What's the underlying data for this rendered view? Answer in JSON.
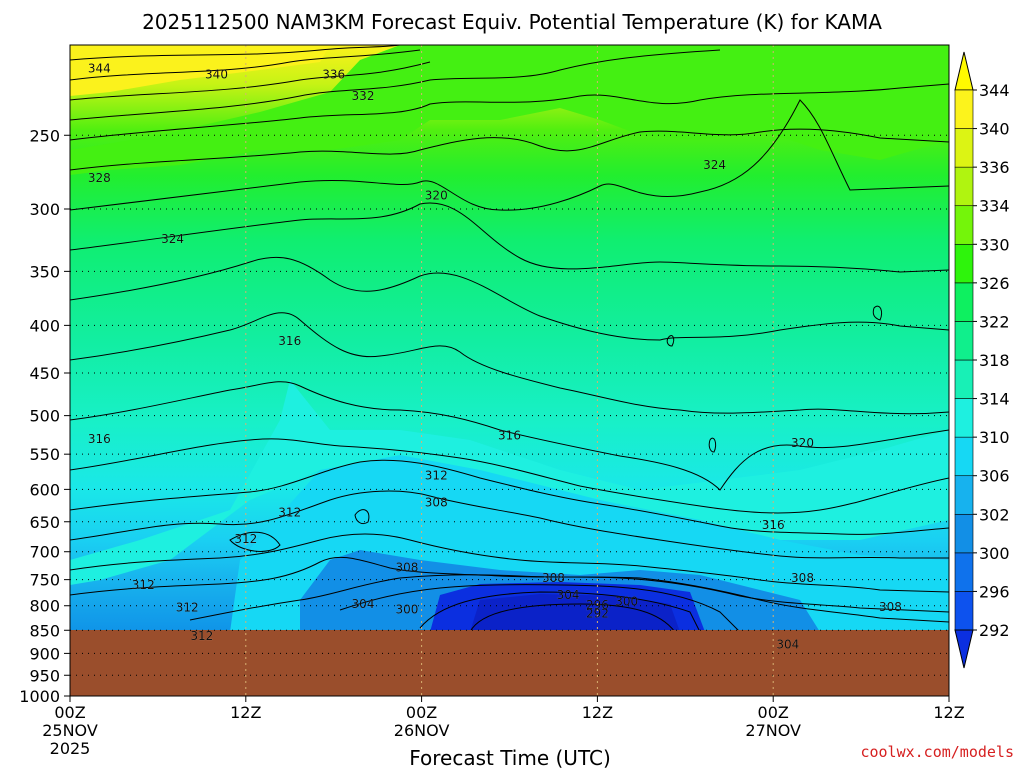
{
  "chart_data": {
    "type": "heatmap",
    "title": "2025112500 NAM3KM Forecast Equiv. Potential Temperature (K) for KAMA",
    "xlabel": "Forecast Time (UTC)",
    "ylabel": "",
    "credit": "coolwx.com/models",
    "y_axis": {
      "scale": "log",
      "ylim": [
        1000,
        200
      ],
      "inverted": true,
      "ticks": [
        "250",
        "300",
        "350",
        "400",
        "450",
        "500",
        "550",
        "600",
        "650",
        "700",
        "750",
        "800",
        "850",
        "900",
        "950",
        "1000"
      ]
    },
    "x_axis": {
      "xlim_hours": [
        0,
        60
      ],
      "ticks": [
        {
          "hour": 0,
          "l1": "00Z",
          "l2": "25NOV",
          "l3": "2025"
        },
        {
          "hour": 12,
          "l1": "12Z",
          "l2": "",
          "l3": ""
        },
        {
          "hour": 24,
          "l1": "00Z",
          "l2": "26NOV",
          "l3": ""
        },
        {
          "hour": 36,
          "l1": "12Z",
          "l2": "",
          "l3": ""
        },
        {
          "hour": 48,
          "l1": "00Z",
          "l2": "27NOV",
          "l3": ""
        },
        {
          "hour": 60,
          "l1": "12Z",
          "l2": "",
          "l3": ""
        }
      ]
    },
    "colorbar": {
      "labels": [
        "292",
        "296",
        "300",
        "302",
        "306",
        "310",
        "314",
        "318",
        "322",
        "326",
        "330",
        "334",
        "336",
        "340",
        "344"
      ],
      "colors": [
        "#0b2fe0",
        "#0d52ee",
        "#0f72ec",
        "#128fe6",
        "#17b2ee",
        "#16d8f4",
        "#1ef0e0",
        "#18f0b6",
        "#10ef8c",
        "#0ef060",
        "#2ef40c",
        "#74f50a",
        "#b0f410",
        "#dcf414",
        "#fcf31c",
        "#fffa00"
      ]
    },
    "ground_color": "#9a4e2c",
    "contour_labels": [
      {
        "text": "344",
        "hour": 2,
        "p": 212
      },
      {
        "text": "340",
        "hour": 10,
        "p": 215
      },
      {
        "text": "336",
        "hour": 18,
        "p": 215
      },
      {
        "text": "332",
        "hour": 20,
        "p": 227
      },
      {
        "text": "328",
        "hour": 2,
        "p": 278
      },
      {
        "text": "324",
        "hour": 7,
        "p": 323
      },
      {
        "text": "324",
        "hour": 44,
        "p": 269
      },
      {
        "text": "320",
        "hour": 25,
        "p": 290
      },
      {
        "text": "320",
        "hour": 50,
        "p": 535
      },
      {
        "text": "316",
        "hour": 15,
        "p": 416
      },
      {
        "text": "316",
        "hour": 2,
        "p": 530
      },
      {
        "text": "316",
        "hour": 30,
        "p": 525
      },
      {
        "text": "316",
        "hour": 48,
        "p": 655
      },
      {
        "text": "312",
        "hour": 25,
        "p": 580
      },
      {
        "text": "312",
        "hour": 15,
        "p": 635
      },
      {
        "text": "312",
        "hour": 12,
        "p": 678
      },
      {
        "text": "312",
        "hour": 5,
        "p": 760
      },
      {
        "text": "312",
        "hour": 8,
        "p": 803
      },
      {
        "text": "312",
        "hour": 9,
        "p": 862
      },
      {
        "text": "308",
        "hour": 25,
        "p": 620
      },
      {
        "text": "308",
        "hour": 23,
        "p": 728
      },
      {
        "text": "308",
        "hour": 33,
        "p": 747
      },
      {
        "text": "308",
        "hour": 50,
        "p": 747
      },
      {
        "text": "308",
        "hour": 56,
        "p": 802
      },
      {
        "text": "304",
        "hour": 20,
        "p": 797
      },
      {
        "text": "304",
        "hour": 34,
        "p": 779
      },
      {
        "text": "304",
        "hour": 49,
        "p": 880
      },
      {
        "text": "300",
        "hour": 23,
        "p": 807
      },
      {
        "text": "300",
        "hour": 38,
        "p": 792
      },
      {
        "text": "296",
        "hour": 36,
        "p": 799
      },
      {
        "text": "292",
        "hour": 36,
        "p": 815
      }
    ]
  }
}
